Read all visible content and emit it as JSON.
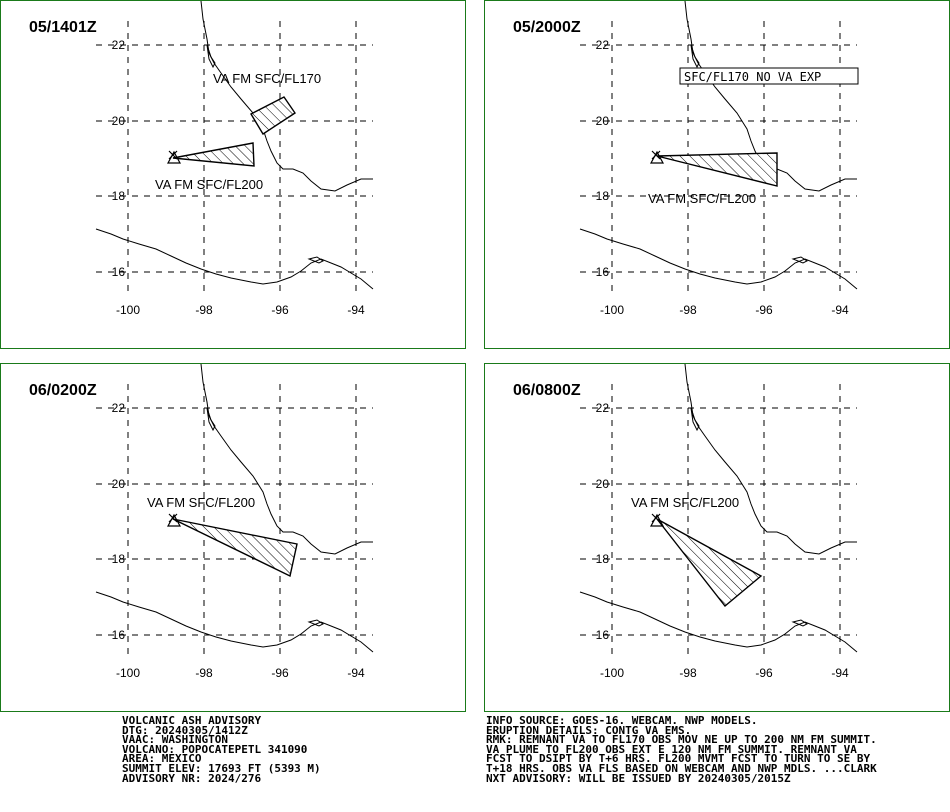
{
  "panels": [
    {
      "time": "05/1401Z",
      "labels": [
        "VA FM SFC/FL170",
        "VA FM SFC/FL200"
      ]
    },
    {
      "time": "05/2000Z",
      "labels": [
        "SFC/FL170 NO VA EXP",
        "VA FM SFC/FL200"
      ]
    },
    {
      "time": "06/0200Z",
      "labels": [
        "VA FM SFC/FL200"
      ]
    },
    {
      "time": "06/0800Z",
      "labels": [
        "VA FM SFC/FL200"
      ]
    }
  ],
  "axis": {
    "lon_ticks": [
      "-100",
      "-98",
      "-96",
      "-94"
    ],
    "lat_ticks": [
      "22",
      "20",
      "18",
      "16"
    ]
  },
  "advisory_left": [
    "VOLCANIC ASH ADVISORY",
    "DTG: 20240305/1412Z",
    "VAAC: WASHINGTON",
    "VOLCANO: POPOCATEPETL 341090",
    "AREA: MEXICO",
    "SUMMIT ELEV: 17693 FT (5393 M)",
    "ADVISORY NR: 2024/276"
  ],
  "advisory_right": [
    "INFO SOURCE: GOES-16. WEBCAM. NWP MODELS.",
    "ERUPTION DETAILS: CONTG VA EMS.",
    "RMK: REMNANT VA TO FL170 OBS MOV NE UP TO 200 NM FM SUMMIT.",
    "VA PLUME TO FL200 OBS EXT E 120 NM FM SUMMIT. REMNANT VA",
    "FCST TO DSIPT BY T+6 HRS. FL200 MVMT FCST TO TURN TO SE BY",
    "T+18 HRS. OBS VA FLS BASED ON WEBCAM AND NWP MDLS. ...CLARK",
    "NXT ADVISORY: WILL BE ISSUED BY 20240305/2015Z"
  ],
  "colors": {
    "border": "#1a7a1a",
    "ink": "#000000"
  }
}
